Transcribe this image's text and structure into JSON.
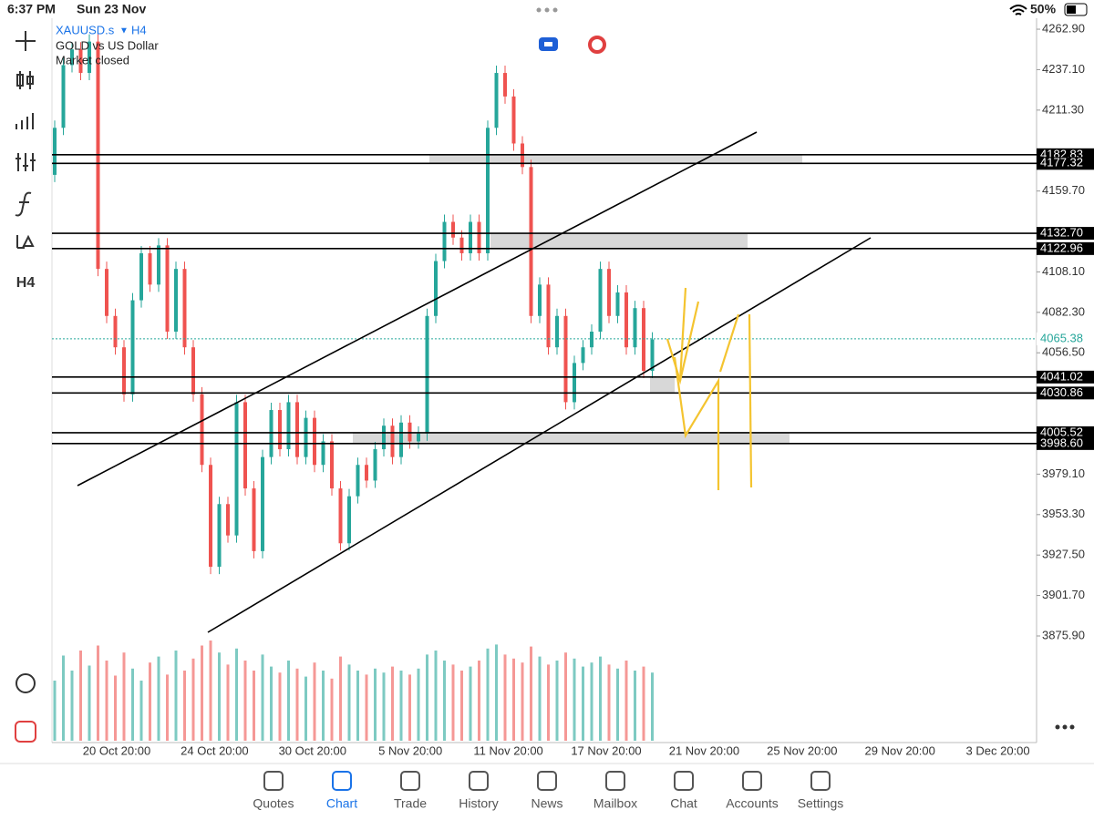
{
  "status_bar": {
    "time": "6:37 PM",
    "date": "Sun 23 Nov",
    "battery": "50%"
  },
  "symbol": {
    "name": "XAUUSD.s",
    "timeframe": "H4",
    "description": "GOLD vs US Dollar",
    "status": "Market closed"
  },
  "toolbar": {
    "timeframe": "H4"
  },
  "price_axis": {
    "ylim": [
      3807.9,
      4269.9
    ],
    "ticks": [
      {
        "value": 4262.9,
        "label": "4262.90"
      },
      {
        "value": 4237.1,
        "label": "4237.10"
      },
      {
        "value": 4211.3,
        "label": "4211.30"
      },
      {
        "value": 4159.7,
        "label": "4159.70"
      },
      {
        "value": 4108.1,
        "label": "4108.10"
      },
      {
        "value": 4082.3,
        "label": "4082.30"
      },
      {
        "value": 4056.5,
        "label": "4056.50"
      },
      {
        "value": 3979.1,
        "label": "3979.10"
      },
      {
        "value": 3953.3,
        "label": "3953.30"
      },
      {
        "value": 3927.5,
        "label": "3927.50"
      },
      {
        "value": 3901.7,
        "label": "3901.70"
      },
      {
        "value": 3875.9,
        "label": "3875.90"
      }
    ],
    "levels": [
      {
        "value": 4182.83,
        "label": "4182.83"
      },
      {
        "value": 4177.32,
        "label": "4177.32"
      },
      {
        "value": 4132.7,
        "label": "4132.70"
      },
      {
        "value": 4122.96,
        "label": "4122.96"
      },
      {
        "value": 4041.02,
        "label": "4041.02"
      },
      {
        "value": 4030.86,
        "label": "4030.86"
      },
      {
        "value": 4005.52,
        "label": "4005.52"
      },
      {
        "value": 3998.6,
        "label": "3998.60"
      }
    ],
    "current_price": {
      "value": 4065.38,
      "label": "4065.38"
    }
  },
  "time_axis": {
    "labels": [
      "20 Oct 20:00",
      "24 Oct 20:00",
      "30 Oct 20:00",
      "5 Nov 20:00",
      "11 Nov 20:00",
      "17 Nov 20:00",
      "21 Nov 20:00",
      "25 Nov 20:00",
      "29 Nov 20:00",
      "3 Dec 20:00"
    ]
  },
  "candles": {
    "open": 4170,
    "closes": [
      4200,
      4240,
      4250,
      4235,
      4255,
      4110,
      4080,
      4060,
      4030,
      4090,
      4120,
      4100,
      4125,
      4070,
      4110,
      4060,
      4030,
      3985,
      3920,
      3960,
      3940,
      4025,
      3970,
      3930,
      3990,
      4020,
      3995,
      4025,
      3990,
      4015,
      3985,
      4000,
      3970,
      3935,
      3965,
      3985,
      3975,
      3995,
      4010,
      3990,
      4012,
      4000,
      4005,
      4080,
      4115,
      4140,
      4130,
      4120,
      4140,
      4120,
      4200,
      4235,
      4220,
      4190,
      4175,
      4080,
      4100,
      4060,
      4080,
      4025,
      4050,
      4060,
      4070,
      4110,
      4080,
      4095,
      4060,
      4085,
      4045,
      4065
    ],
    "volumes": [
      60,
      85,
      70,
      90,
      75,
      95,
      80,
      65,
      88,
      72,
      60,
      78,
      84,
      66,
      90,
      70,
      82,
      95,
      100,
      88,
      76,
      92,
      80,
      70,
      86,
      74,
      68,
      80,
      72,
      64,
      78,
      70,
      62,
      84,
      76,
      70,
      66,
      72,
      68,
      74,
      70,
      66,
      72,
      86,
      90,
      80,
      76,
      70,
      74,
      80,
      92,
      96,
      86,
      82,
      78,
      94,
      84,
      76,
      80,
      88,
      82,
      74,
      78,
      84,
      76,
      72,
      80,
      70,
      74,
      68
    ]
  },
  "tabs": [
    "Quotes",
    "Chart",
    "Trade",
    "History",
    "News",
    "Mailbox",
    "Chat",
    "Accounts",
    "Settings"
  ],
  "active_tab": "Chart"
}
